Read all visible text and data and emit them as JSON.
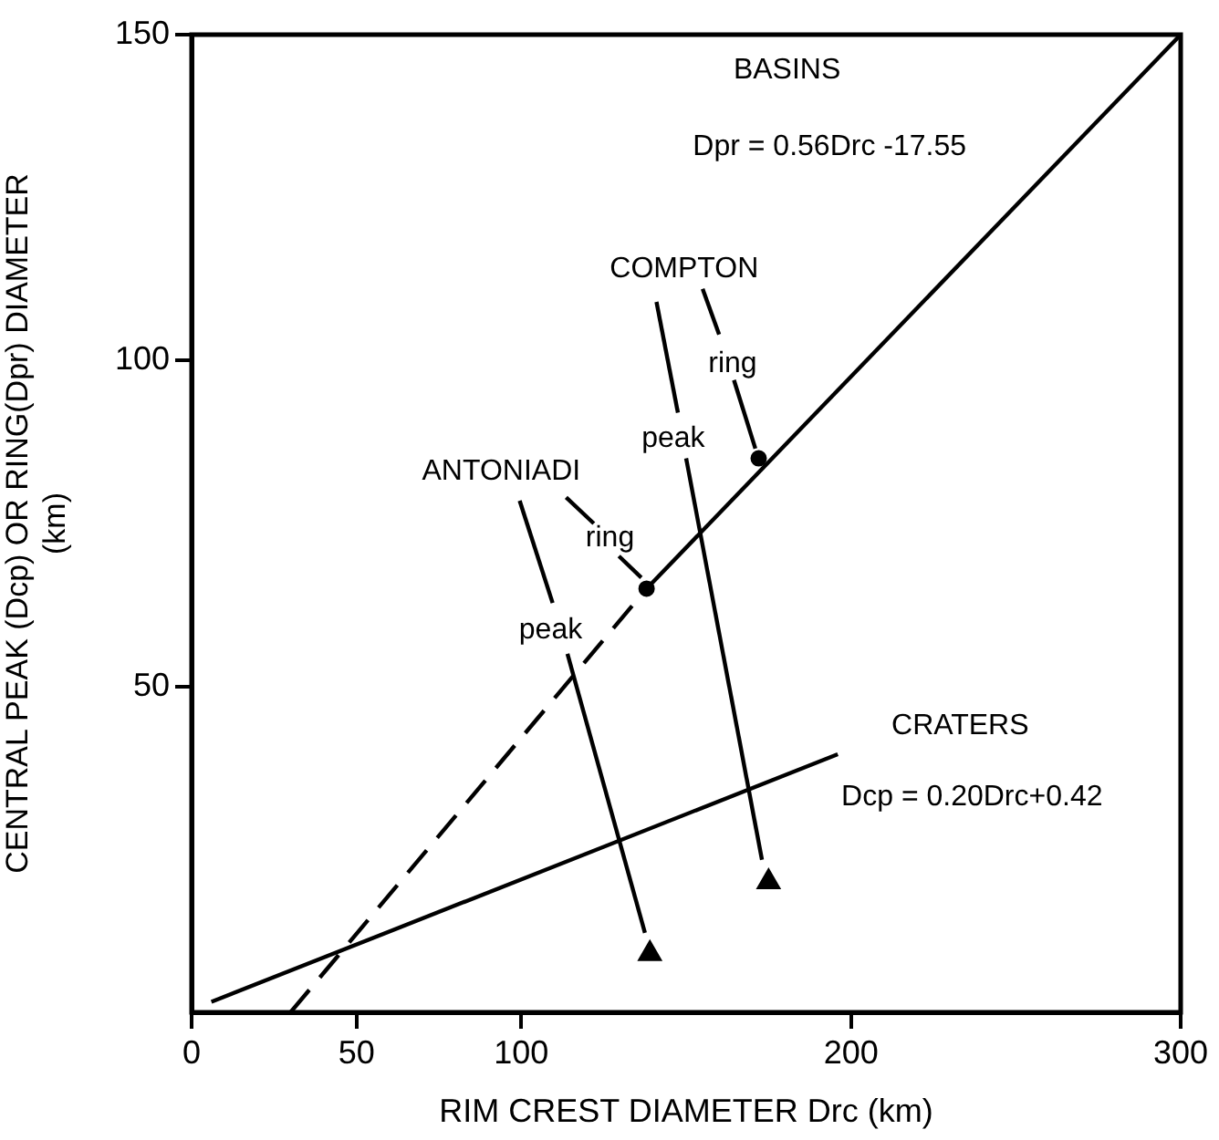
{
  "chart_data": {
    "type": "scatter",
    "xlabel": "RIM CREST DIAMETER Drc (km)",
    "ylabel": "CENTRAL PEAK (Dcp) OR RING(Dpr) DIAMETER\n(km)",
    "xlim": [
      0,
      300
    ],
    "xticks": [
      0,
      50,
      100,
      200,
      300
    ],
    "ylim": [
      0,
      150
    ],
    "yticks": [
      50,
      100,
      150
    ],
    "grid": false,
    "legend": false,
    "series": [
      {
        "type": "line",
        "color": "#000000",
        "x": [
          30,
          138
        ],
        "values": [
          0,
          65
        ],
        "line_style": "dashed",
        "marker": "none"
      },
      {
        "type": "line",
        "color": "#000000",
        "x": [
          138,
          300
        ],
        "values": [
          65,
          150
        ],
        "line_style": "solid",
        "marker": "none"
      },
      {
        "type": "line",
        "color": "#000000",
        "x": [
          6,
          196
        ],
        "values": [
          1.6,
          39.6
        ],
        "line_style": "solid",
        "marker": "none"
      },
      {
        "type": "line",
        "color": "#000000",
        "x": [
          141,
          147.5
        ],
        "values": [
          109,
          92
        ],
        "line_style": "solid",
        "marker": "none"
      },
      {
        "type": "line",
        "color": "#000000",
        "x": [
          150,
          173
        ],
        "values": [
          85,
          23.4
        ],
        "line_style": "solid",
        "marker": "none"
      },
      {
        "type": "line",
        "color": "#000000",
        "x": [
          155,
          160
        ],
        "values": [
          111,
          104
        ],
        "line_style": "solid",
        "marker": "none"
      },
      {
        "type": "line",
        "color": "#000000",
        "x": [
          164.5,
          171
        ],
        "values": [
          97,
          86.5
        ],
        "line_style": "solid",
        "marker": "none"
      },
      {
        "type": "line",
        "color": "#000000",
        "x": [
          99.5,
          109.5
        ],
        "values": [
          78.5,
          62.8
        ],
        "line_style": "solid",
        "marker": "none"
      },
      {
        "type": "line",
        "color": "#000000",
        "x": [
          114,
          137.5
        ],
        "values": [
          55,
          12.2
        ],
        "line_style": "solid",
        "marker": "none"
      },
      {
        "type": "line",
        "color": "#000000",
        "x": [
          113.6,
          122
        ],
        "values": [
          79,
          75
        ],
        "line_style": "solid",
        "marker": "none"
      },
      {
        "type": "line",
        "color": "#000000",
        "x": [
          129.6,
          136.4
        ],
        "values": [
          70,
          66.7
        ],
        "line_style": "solid",
        "marker": "none"
      },
      {
        "type": "scatter",
        "color": "#000000",
        "x": [
          138,
          172
        ],
        "values": [
          65,
          85
        ],
        "marker": "circle"
      },
      {
        "type": "scatter",
        "color": "#000000",
        "x": [
          139,
          175
        ],
        "values": [
          9,
          20
        ],
        "marker": "triangle"
      }
    ],
    "annotations": [
      "BASINS",
      "Dpr = 0.56Drc -17.55",
      "COMPTON",
      "ring",
      "peak",
      "ANTONIADI",
      "ring",
      "peak",
      "CRATERS",
      "Dcp = 0.20Drc+0.42"
    ]
  }
}
